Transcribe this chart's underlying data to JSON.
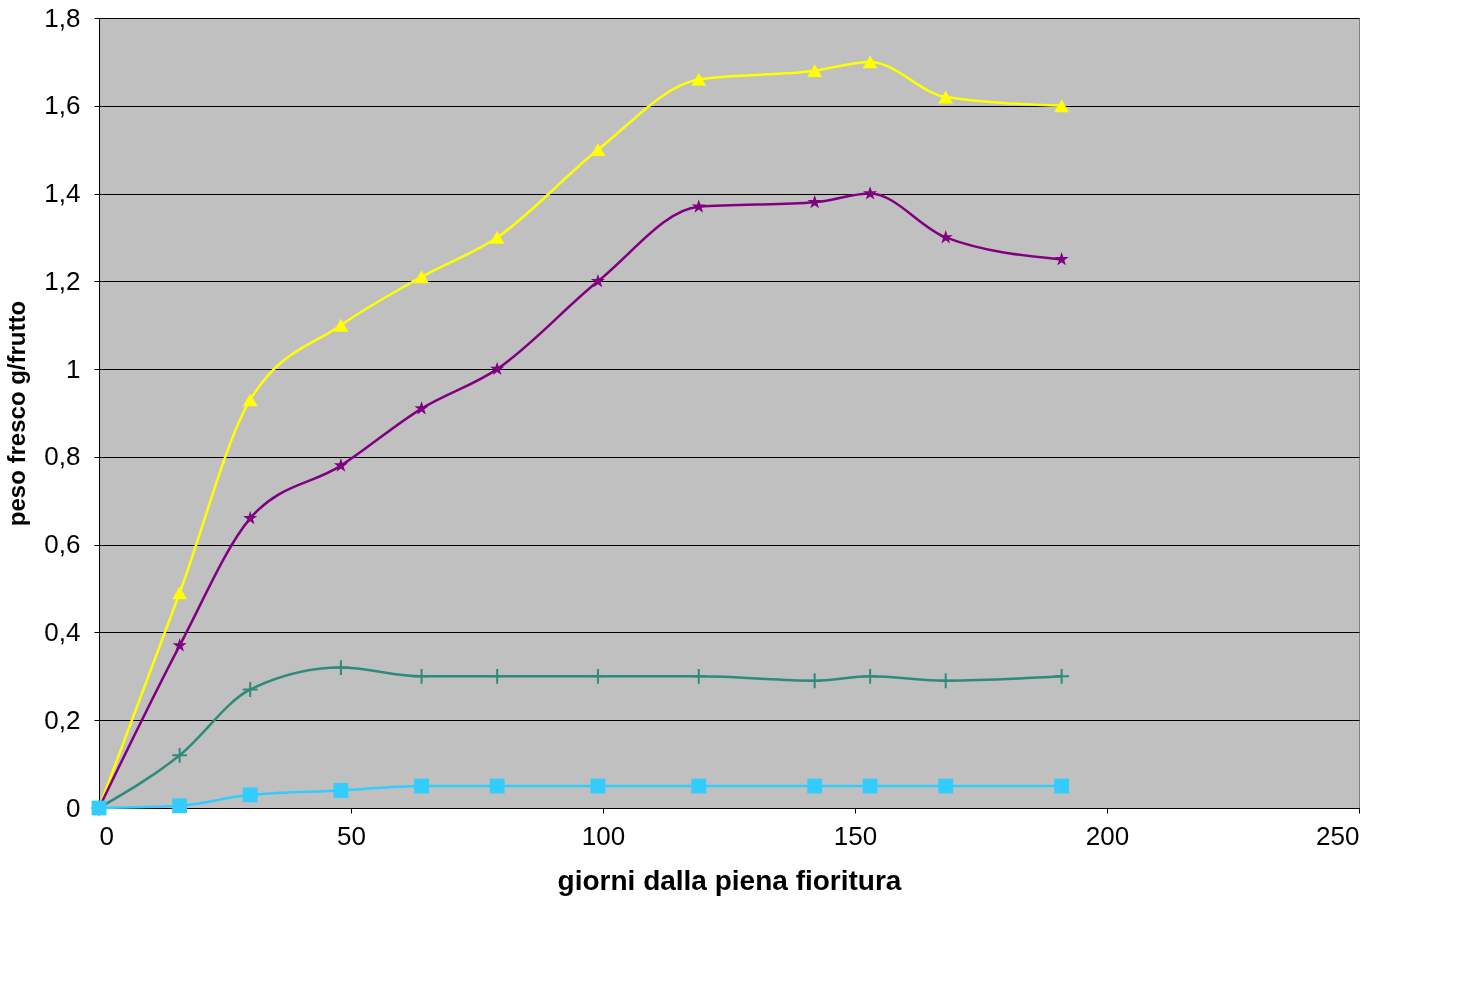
{
  "chart_data": {
    "type": "line",
    "xlabel": "giorni dalla piena fioritura",
    "ylabel": "peso fresco g/frutto",
    "x": [
      0,
      16,
      30,
      48,
      64,
      79,
      99,
      119,
      142,
      153,
      168,
      191
    ],
    "series": [
      {
        "color": "#ffff00",
        "marker": "triangle",
        "values": [
          0,
          0.49,
          0.93,
          1.1,
          1.21,
          1.3,
          1.5,
          1.66,
          1.68,
          1.7,
          1.62,
          1.6
        ]
      },
      {
        "color": "#800080",
        "marker": "star",
        "values": [
          0,
          0.37,
          0.66,
          0.78,
          0.91,
          1.0,
          1.2,
          1.37,
          1.38,
          1.4,
          1.3,
          1.25
        ]
      },
      {
        "color": "#2e8b7a",
        "marker": "cross",
        "values": [
          0,
          0.12,
          0.27,
          0.32,
          0.3,
          0.3,
          0.3,
          0.3,
          0.29,
          0.3,
          0.29,
          0.3
        ]
      },
      {
        "color": "#33ccff",
        "marker": "square",
        "values": [
          0,
          0.005,
          0.03,
          0.04,
          0.05,
          0.05,
          0.05,
          0.05,
          0.05,
          0.05,
          0.05,
          0.05
        ]
      }
    ],
    "xlim": [
      0,
      250
    ],
    "xticks": [
      0,
      50,
      100,
      150,
      200,
      250
    ],
    "ylim": [
      0,
      1.8
    ],
    "yticks": [
      0,
      {
        "value": 0.2,
        "label": "0,2"
      },
      {
        "value": 0.4,
        "label": "0,4"
      },
      {
        "value": 0.6,
        "label": "0,6"
      },
      {
        "value": 0.8,
        "label": "0,8"
      },
      1,
      {
        "value": 1.2,
        "label": "1,2"
      },
      {
        "value": 1.4,
        "label": "1,4"
      },
      {
        "value": 1.6,
        "label": "1,6"
      },
      {
        "value": 1.8,
        "label": "1,8"
      }
    ],
    "grid": "y",
    "line_style": "solid"
  }
}
